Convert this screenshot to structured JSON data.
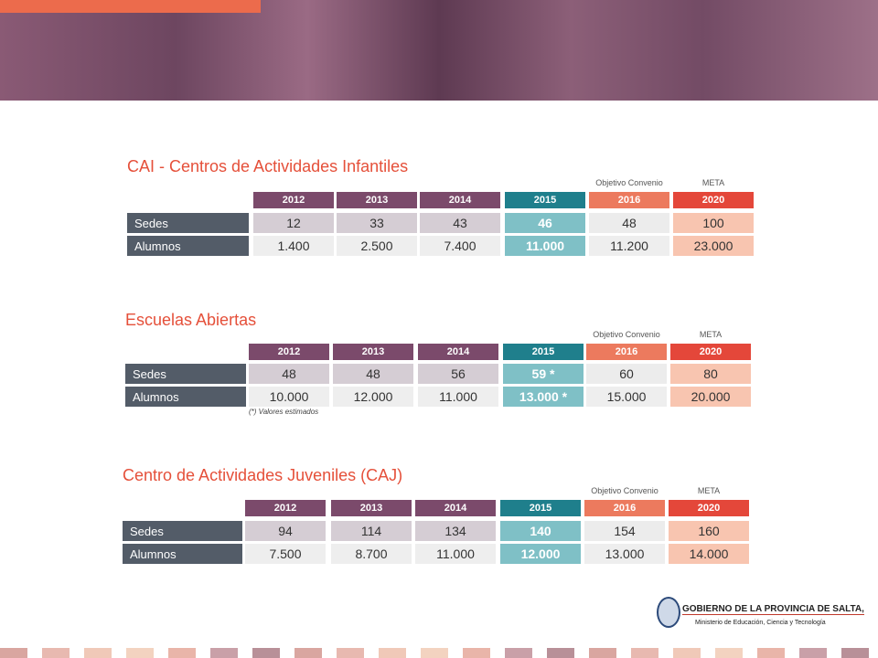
{
  "tables": [
    {
      "title": "CAI - Centros de Actividades Infantiles",
      "top_labels": [
        "Objetivo Convenio",
        "META"
      ],
      "headers": [
        "2012",
        "2013",
        "2014",
        "2015",
        "2016",
        "2020"
      ],
      "rows": [
        {
          "label": "Sedes",
          "values": [
            "12",
            "33",
            "43",
            "46",
            "48",
            "100"
          ]
        },
        {
          "label": "Alumnos",
          "values": [
            "1.400",
            "2.500",
            "7.400",
            "11.000",
            "11.200",
            "23.000"
          ]
        }
      ]
    },
    {
      "title": "Escuelas Abiertas",
      "top_labels": [
        "Objetivo Convenio",
        "META"
      ],
      "headers": [
        "2012",
        "2013",
        "2014",
        "2015",
        "2016",
        "2020"
      ],
      "rows": [
        {
          "label": "Sedes",
          "values": [
            "48",
            "48",
            "56",
            "59 *",
            "60",
            "80"
          ]
        },
        {
          "label": "Alumnos",
          "values": [
            "10.000",
            "12.000",
            "11.000",
            "13.000 *",
            "15.000",
            "20.000"
          ]
        }
      ],
      "note": "(*) Valores estimados"
    },
    {
      "title": "Centro de Actividades Juveniles (CAJ)",
      "top_labels": [
        "Objetivo Convenio",
        "META"
      ],
      "headers": [
        "2012",
        "2013",
        "2014",
        "2015",
        "2016",
        "2020"
      ],
      "rows": [
        {
          "label": "Sedes",
          "values": [
            "94",
            "114",
            "134",
            "140",
            "154",
            "160"
          ]
        },
        {
          "label": "Alumnos",
          "values": [
            "7.500",
            "8.700",
            "11.000",
            "12.000",
            "13.000",
            "14.000"
          ]
        }
      ]
    }
  ],
  "footer": {
    "org": "GOBIERNO DE LA PROVINCIA DE SALTA,",
    "ministry": "Ministerio de Educación, Ciencia y Tecnología"
  }
}
